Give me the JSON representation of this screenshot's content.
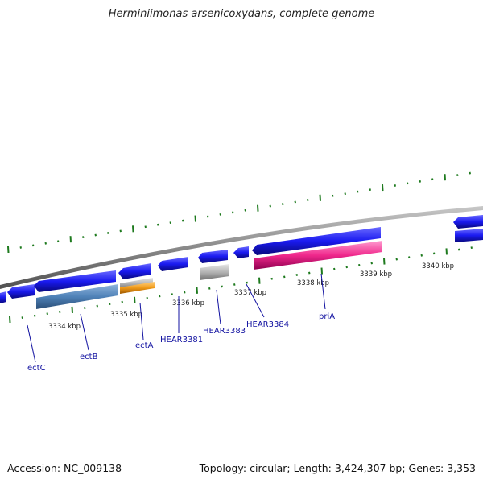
{
  "title": "Herminiimonas arsenicoxydans, complete genome",
  "footer": {
    "accession": "Accession: NC_009138",
    "summary": "Topology: circular; Length: 3,424,307 bp; Genes: 3,353"
  },
  "colors": {
    "forward_gene": "#1a1af0",
    "ectB": "#4f82b8",
    "ectA": "#f09a18",
    "hypothetical": "#b4b4b4",
    "priA": "#f0288c",
    "tick": "#1e7a1e",
    "backbone": "#888888",
    "label_line": "#1010a0"
  },
  "kbp_labels": [
    "3334 kbp",
    "3335 kbp",
    "3336 kbp",
    "3337 kbp",
    "3338 kbp",
    "3339 kbp",
    "3340 kbp"
  ],
  "gene_labels": [
    "ectC",
    "ectB",
    "ectA",
    "HEAR3381",
    "HEAR3383",
    "HEAR3384",
    "priA"
  ]
}
